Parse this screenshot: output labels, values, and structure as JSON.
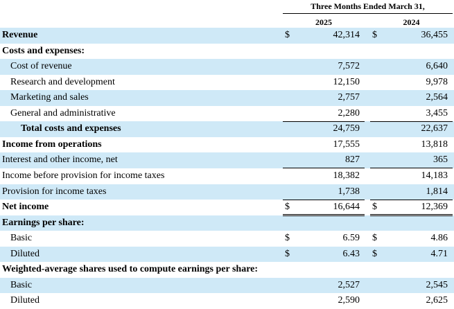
{
  "header": {
    "period": "Three Months Ended March 31,",
    "col1": "2025",
    "col2": "2024"
  },
  "rows": [
    {
      "label": "Revenue",
      "indent": 0,
      "bold": true,
      "cur1": "$",
      "v1": "42,314",
      "cur2": "$",
      "v2": "36,455"
    },
    {
      "label": "Costs and expenses:",
      "indent": 0,
      "bold": true,
      "cur1": "",
      "v1": "",
      "cur2": "",
      "v2": ""
    },
    {
      "label": "Cost of revenue",
      "indent": 1,
      "bold": false,
      "cur1": "",
      "v1": "7,572",
      "cur2": "",
      "v2": "6,640"
    },
    {
      "label": "Research and development",
      "indent": 1,
      "bold": false,
      "cur1": "",
      "v1": "12,150",
      "cur2": "",
      "v2": "9,978"
    },
    {
      "label": "Marketing and sales",
      "indent": 1,
      "bold": false,
      "cur1": "",
      "v1": "2,757",
      "cur2": "",
      "v2": "2,564"
    },
    {
      "label": "General and administrative",
      "indent": 1,
      "bold": false,
      "cur1": "",
      "v1": "2,280",
      "cur2": "",
      "v2": "3,455"
    },
    {
      "label": "Total costs and expenses",
      "indent": 2,
      "bold": true,
      "cur1": "",
      "v1": "24,759",
      "cur2": "",
      "v2": "22,637"
    },
    {
      "label": "Income from operations",
      "indent": 0,
      "bold": true,
      "cur1": "",
      "v1": "17,555",
      "cur2": "",
      "v2": "13,818"
    },
    {
      "label": "Interest and other income, net",
      "indent": 0,
      "bold": false,
      "cur1": "",
      "v1": "827",
      "cur2": "",
      "v2": "365"
    },
    {
      "label": "Income before provision for income taxes",
      "indent": 0,
      "bold": false,
      "cur1": "",
      "v1": "18,382",
      "cur2": "",
      "v2": "14,183"
    },
    {
      "label": "Provision for income taxes",
      "indent": 0,
      "bold": false,
      "cur1": "",
      "v1": "1,738",
      "cur2": "",
      "v2": "1,814"
    },
    {
      "label": "Net income",
      "indent": 0,
      "bold": true,
      "cur1": "$",
      "v1": "16,644",
      "cur2": "$",
      "v2": "12,369"
    },
    {
      "label": "Earnings per share:",
      "indent": 0,
      "bold": true,
      "cur1": "",
      "v1": "",
      "cur2": "",
      "v2": ""
    },
    {
      "label": "Basic",
      "indent": 1,
      "bold": false,
      "cur1": "$",
      "v1": "6.59",
      "cur2": "$",
      "v2": "4.86"
    },
    {
      "label": "Diluted",
      "indent": 1,
      "bold": false,
      "cur1": "$",
      "v1": "6.43",
      "cur2": "$",
      "v2": "4.71"
    },
    {
      "label": "Weighted-average shares used to compute earnings per share:",
      "indent": 0,
      "bold": true,
      "cur1": "",
      "v1": "",
      "cur2": "",
      "v2": ""
    },
    {
      "label": "Basic",
      "indent": 1,
      "bold": false,
      "cur1": "",
      "v1": "2,527",
      "cur2": "",
      "v2": "2,545"
    },
    {
      "label": "Diluted",
      "indent": 1,
      "bold": false,
      "cur1": "",
      "v1": "2,590",
      "cur2": "",
      "v2": "2,625"
    }
  ],
  "colors": {
    "shade": "#cfe9f7",
    "text": "#000000"
  }
}
